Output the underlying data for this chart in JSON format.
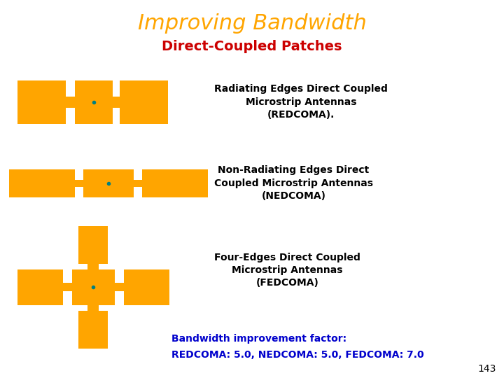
{
  "title": "Improving Bandwidth",
  "title_color": "#FFA500",
  "subtitle": "Direct-Coupled Patches",
  "subtitle_color": "#CC0000",
  "orange_color": "#FFA500",
  "text1": "Radiating Edges Direct Coupled\nMicrostrip Antennas\n(REDCOMA).",
  "text2": "Non-Radiating Edges Direct\nCoupled Microstrip Antennas\n(NEDCOMA)",
  "text3": "Four-Edges Direct Coupled\nMicrostrip Antennas\n(FEDCOMA)",
  "text4_line1": "Bandwidth improvement factor:",
  "text4_line2": "REDCOMA: 5.0, NEDCOMA: 5.0, FEDCOMA: 7.0",
  "text_color": "#000000",
  "blue_color": "#0000CC",
  "page_num": "143",
  "background": "#FFFFFF"
}
